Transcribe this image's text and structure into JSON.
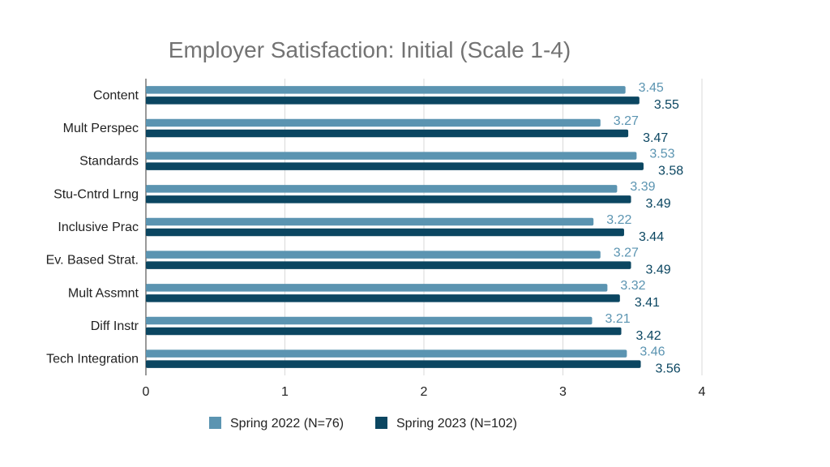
{
  "chart_data": {
    "type": "bar",
    "orientation": "horizontal",
    "title": "Employer Satisfaction: Initial (Scale 1-4)",
    "xlabel": "",
    "ylabel": "",
    "xlim": [
      0,
      4
    ],
    "x_ticks": [
      "0",
      "1",
      "2",
      "3",
      "4"
    ],
    "grid": true,
    "legend_position": "bottom",
    "categories": [
      "Content",
      "Mult Perspec",
      "Standards",
      "Stu-Cntrd Lrng",
      "Inclusive Prac",
      "Ev. Based Strat.",
      "Mult Assmnt",
      "Diff Instr",
      "Tech Integration"
    ],
    "series": [
      {
        "name": "Spring 2022 (N=76)",
        "color": "#5b94b1",
        "values": [
          3.45,
          3.27,
          3.53,
          3.39,
          3.22,
          3.27,
          3.32,
          3.21,
          3.46
        ],
        "value_labels": [
          "3.45",
          "3.27",
          "3.53",
          "3.39",
          "3.22",
          "3.27",
          "3.32",
          "3.21",
          "3.46"
        ]
      },
      {
        "name": "Spring 2023 (N=102)",
        "color": "#0b4661",
        "values": [
          3.55,
          3.47,
          3.58,
          3.49,
          3.44,
          3.49,
          3.41,
          3.42,
          3.56
        ],
        "value_labels": [
          "3.55",
          "3.47",
          "3.58",
          "3.49",
          "3.44",
          "3.49",
          "3.41",
          "3.42",
          "3.56"
        ]
      }
    ]
  }
}
